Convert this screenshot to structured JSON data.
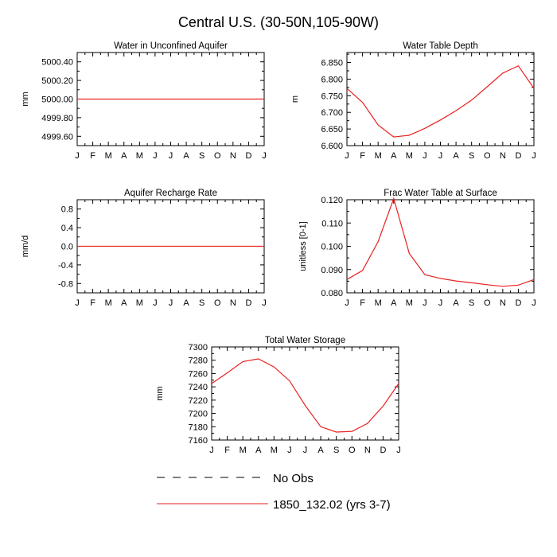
{
  "title": "Central U.S. (30-50N,105-90W)",
  "legend": [
    {
      "label": "No Obs",
      "color": "#000000",
      "dash": true
    },
    {
      "label": "1850_132.02 (yrs 3-7)",
      "color": "#e8211f",
      "dash": false
    }
  ],
  "chart_data": [
    {
      "type": "line",
      "title": "Water in Unconfined Aquifer",
      "ylabel": "mm",
      "categories": [
        "J",
        "F",
        "M",
        "A",
        "M",
        "J",
        "J",
        "A",
        "S",
        "O",
        "N",
        "D",
        "J"
      ],
      "ylim": [
        4999.5,
        5000.5
      ],
      "yticks": [
        4999.6,
        4999.8,
        5000.0,
        5000.2,
        5000.4
      ],
      "ytick_labels": [
        "4999.60",
        "4999.80",
        "5000.00",
        "5000.20",
        "5000.40"
      ],
      "series": [
        {
          "values": [
            5000,
            5000,
            5000,
            5000,
            5000,
            5000,
            5000,
            5000,
            5000,
            5000,
            5000,
            5000,
            5000
          ]
        }
      ]
    },
    {
      "type": "line",
      "title": "Water Table Depth",
      "ylabel": "m",
      "categories": [
        "J",
        "F",
        "M",
        "A",
        "M",
        "J",
        "J",
        "A",
        "S",
        "O",
        "N",
        "D",
        "J"
      ],
      "ylim": [
        6.6,
        6.88
      ],
      "yticks": [
        6.6,
        6.65,
        6.7,
        6.75,
        6.8,
        6.85
      ],
      "ytick_labels": [
        "6.600",
        "6.650",
        "6.700",
        "6.750",
        "6.800",
        "6.850"
      ],
      "series": [
        {
          "values": [
            6.772,
            6.73,
            6.662,
            6.626,
            6.631,
            6.652,
            6.677,
            6.705,
            6.737,
            6.777,
            6.818,
            6.84,
            6.772
          ]
        }
      ]
    },
    {
      "type": "line",
      "title": "Aquifer Recharge Rate",
      "ylabel": "mm/d",
      "categories": [
        "J",
        "F",
        "M",
        "A",
        "M",
        "J",
        "J",
        "A",
        "S",
        "O",
        "N",
        "D",
        "J"
      ],
      "ylim": [
        -1.0,
        1.0
      ],
      "yticks": [
        -0.8,
        -0.4,
        0.0,
        0.4,
        0.8
      ],
      "ytick_labels": [
        "-0.8",
        "-0.4",
        "0.0",
        "0.4",
        "0.8"
      ],
      "series": [
        {
          "values": [
            0,
            0,
            0,
            0,
            0,
            0,
            0,
            0,
            0,
            0,
            0,
            0,
            0
          ]
        }
      ]
    },
    {
      "type": "line",
      "title": "Frac Water Table at Surface",
      "ylabel": "unitless [0-1]",
      "categories": [
        "J",
        "F",
        "M",
        "A",
        "M",
        "J",
        "J",
        "A",
        "S",
        "O",
        "N",
        "D",
        "J"
      ],
      "ylim": [
        0.08,
        0.12
      ],
      "yticks": [
        0.08,
        0.09,
        0.1,
        0.11,
        0.12
      ],
      "ytick_labels": [
        "0.080",
        "0.090",
        "0.100",
        "0.110",
        "0.120"
      ],
      "series": [
        {
          "values": [
            0.0857,
            0.0896,
            0.102,
            0.1205,
            0.097,
            0.0878,
            0.0862,
            0.0851,
            0.0843,
            0.0835,
            0.0828,
            0.0833,
            0.0857
          ]
        }
      ]
    },
    {
      "type": "line",
      "title": "Total Water Storage",
      "ylabel": "mm",
      "categories": [
        "J",
        "F",
        "M",
        "A",
        "M",
        "J",
        "J",
        "A",
        "S",
        "O",
        "N",
        "D",
        "J"
      ],
      "ylim": [
        7160,
        7300
      ],
      "yticks": [
        7160,
        7180,
        7200,
        7220,
        7240,
        7260,
        7280,
        7300
      ],
      "ytick_labels": [
        "7160",
        "7180",
        "7200",
        "7220",
        "7240",
        "7260",
        "7280",
        "7300"
      ],
      "series": [
        {
          "values": [
            7245,
            7261,
            7278,
            7282,
            7270,
            7249,
            7212,
            7180,
            7172,
            7173,
            7185,
            7211,
            7245
          ]
        }
      ]
    }
  ]
}
